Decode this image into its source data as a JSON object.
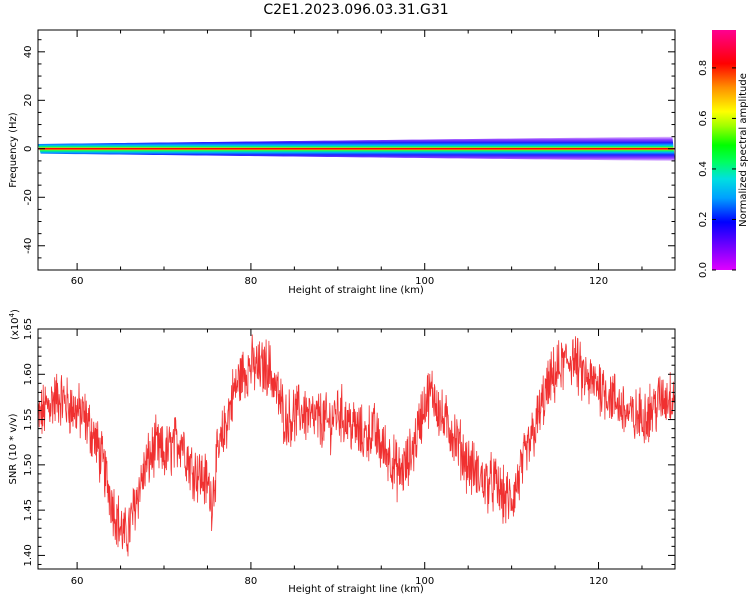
{
  "page": {
    "title": "C2E1.2023.096.03.31.G31"
  },
  "colors": {
    "snr_line": "#f03030",
    "colorbar_stops": [
      "#e000ff",
      "#5000ff",
      "#0000ff",
      "#00a0ff",
      "#00e0e0",
      "#00ff80",
      "#00ff00",
      "#c0ff00",
      "#ffff00",
      "#ffa000",
      "#ff0000",
      "#ff0080"
    ]
  },
  "chart_data": [
    {
      "type": "heatmap",
      "title": "C2E1.2023.096.03.31.G31",
      "xlabel": "Height of straight line (km)",
      "ylabel": "Frequency (Hz)",
      "xlim": [
        55.5,
        128.8
      ],
      "ylim": [
        -50,
        49
      ],
      "x_ticks": [
        60,
        80,
        100,
        120
      ],
      "y_ticks": [
        -40,
        -20,
        0,
        20,
        40
      ],
      "colorbar": {
        "label": "Normalized spectral amplitude",
        "range": [
          0,
          0.95
        ],
        "ticks": [
          "0.0",
          "0.2",
          "0.4",
          "0.6",
          "0.8"
        ]
      },
      "band": {
        "center_hz": 0,
        "halfwidth_hz_start": 2,
        "halfwidth_hz_end": 5,
        "peak_amplitude": 0.95
      }
    },
    {
      "type": "line",
      "xlabel": "Height of straight line (km)",
      "ylabel": "SNR (10 * v/v)",
      "y_multiplier": "(x10",
      "y_multiplier_exp": "4",
      "y_multiplier_close": ")",
      "xlim": [
        55.5,
        128.8
      ],
      "ylim": [
        1.385,
        1.65
      ],
      "x_ticks": [
        60,
        80,
        100,
        120
      ],
      "y_ticks": [
        "1.40",
        "1.45",
        "1.50",
        "1.55",
        "1.60",
        "1.65"
      ],
      "series": [
        {
          "x": [
            55.5,
            57,
            58,
            59,
            60,
            61,
            62,
            63,
            64,
            65,
            65.5,
            66,
            67,
            68,
            69,
            70,
            71,
            72,
            73,
            74,
            75,
            75.5,
            76,
            77,
            78,
            79,
            80,
            81,
            82,
            83,
            84,
            85,
            86,
            87,
            88,
            89,
            90,
            91,
            92,
            93,
            94,
            95,
            96,
            97,
            98,
            99,
            100,
            101,
            102,
            103,
            104,
            105,
            106,
            107,
            108,
            109,
            110,
            111,
            112,
            113,
            114,
            115,
            116,
            117,
            118,
            119,
            120,
            121,
            122,
            123,
            124,
            125,
            126,
            127,
            128,
            128.8
          ],
          "y": [
            1.55,
            1.57,
            1.575,
            1.565,
            1.56,
            1.55,
            1.53,
            1.5,
            1.46,
            1.43,
            1.42,
            1.43,
            1.47,
            1.5,
            1.52,
            1.51,
            1.52,
            1.53,
            1.5,
            1.49,
            1.48,
            1.46,
            1.5,
            1.54,
            1.58,
            1.6,
            1.61,
            1.605,
            1.61,
            1.58,
            1.55,
            1.555,
            1.56,
            1.55,
            1.55,
            1.545,
            1.56,
            1.55,
            1.54,
            1.53,
            1.54,
            1.52,
            1.51,
            1.49,
            1.5,
            1.53,
            1.57,
            1.58,
            1.55,
            1.54,
            1.52,
            1.5,
            1.49,
            1.48,
            1.48,
            1.465,
            1.46,
            1.49,
            1.52,
            1.55,
            1.58,
            1.6,
            1.61,
            1.62,
            1.6,
            1.59,
            1.59,
            1.58,
            1.57,
            1.56,
            1.55,
            1.555,
            1.56,
            1.57,
            1.575,
            1.58
          ]
        }
      ]
    }
  ]
}
